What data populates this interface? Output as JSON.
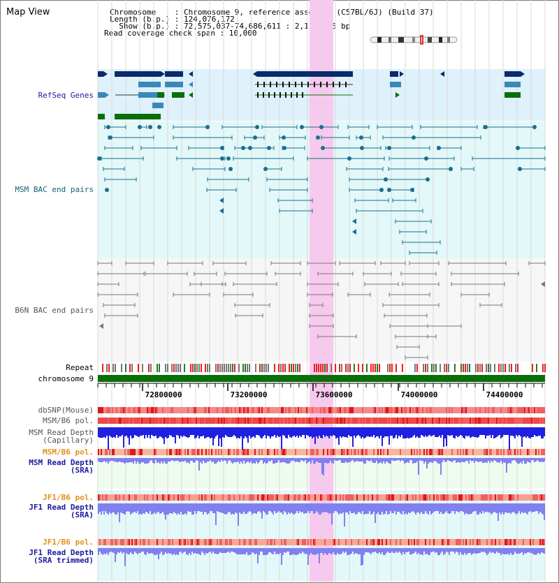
{
  "view": {
    "title": "Map View",
    "info": {
      "chromosome": "Chromosome    : Chromosome 9, reference assembly (C57BL/6J) (Build 37)",
      "length": "Length (b.p.) : 124,076,172",
      "show": "  Show (b.p.) : 72,575,037-74,686,611 : 2,111,575 bp",
      "coverage": "Read coverage check span : 10,000"
    }
  },
  "tracks": {
    "refseq": "RefSeq Genes",
    "msm_bac": "MSM BAC end pairs",
    "b6n_bac": "B6N BAC end pairs",
    "repeat": "Repeat",
    "chromosome": "chromosome 9",
    "dbsnp": "dbSNP(Mouse)",
    "msm_pol": "MSM/B6 pol.",
    "msm_depth_cap": "MSM Read Depth\n(Capillary)",
    "msm_pol2": "MSM/B6 pol.",
    "msm_depth_sra": "MSM Read Depth\n(SRA)",
    "jf1_pol": "JF1/B6 pol.",
    "jf1_depth_sra": "JF1 Read Depth\n(SRA)",
    "jf1_pol2": "JF1/B6 pol.",
    "jf1_depth_trim": "JF1 Read Depth\n(SRA trimmed)"
  },
  "ruler": {
    "ticks": [
      "72800000",
      "73200000",
      "73600000",
      "74000000",
      "74400000"
    ]
  },
  "colors": {
    "refseq_dark": "#0a2a6b",
    "refseq_mid": "#3a88b8",
    "refseq_green": "#0a6e0a",
    "msm_feature": "#1a6e8e",
    "b6n_feature": "#777777",
    "highlight": "#f7c9ee",
    "label_blue": "#1a1aa0",
    "label_teal": "#15607a",
    "label_gray": "#555555",
    "label_orange": "#e0901a",
    "snp_red": "#e83030",
    "depth_blue": "#2020e0",
    "depth_light": "#8080f0"
  }
}
